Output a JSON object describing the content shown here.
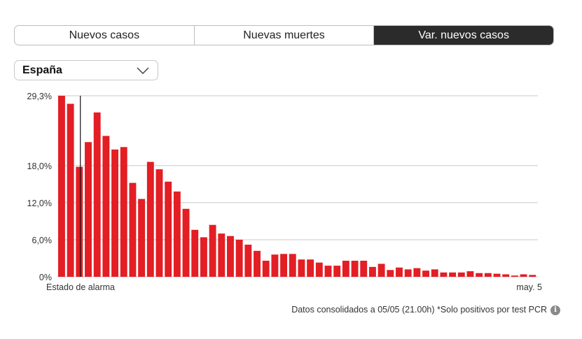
{
  "tabs": [
    {
      "label": "Nuevos casos",
      "active": false
    },
    {
      "label": "Nuevas muertes",
      "active": false
    },
    {
      "label": "Var. nuevos casos",
      "active": true
    }
  ],
  "region_select": {
    "value": "España",
    "icon": "chevron-down-icon"
  },
  "footnote": "Datos consolidados a 05/05 (21.00h) *Solo positivos por test PCR",
  "info_icon": "info-icon",
  "colors": {
    "bar": "#e31e24",
    "grid": "#c8c8c8",
    "marker": "#111111"
  },
  "chart_data": {
    "type": "bar",
    "y_tick_labels": [
      "0%",
      "6,0%",
      "12,0%",
      "18,0%",
      "29,3%"
    ],
    "y_ticks": [
      0,
      6,
      12,
      18,
      29.3
    ],
    "ylim": [
      0,
      29.3
    ],
    "x_labels": {
      "start": "Estado de alarma",
      "end": "may. 5"
    },
    "marker_label": "Estado de alarma",
    "marker_index": 2.5,
    "values": [
      29.3,
      28.0,
      17.8,
      21.8,
      26.6,
      22.8,
      20.6,
      21.0,
      15.2,
      12.6,
      18.6,
      17.4,
      15.4,
      13.8,
      11.0,
      7.6,
      6.4,
      8.4,
      7.0,
      6.6,
      6.0,
      5.2,
      4.2,
      2.6,
      3.6,
      3.7,
      3.7,
      2.8,
      2.8,
      2.3,
      1.8,
      1.8,
      2.6,
      2.6,
      2.6,
      1.6,
      2.1,
      1.1,
      1.5,
      1.2,
      1.4,
      1.0,
      1.2,
      0.7,
      0.7,
      0.7,
      0.9,
      0.6,
      0.6,
      0.5,
      0.4,
      0.2,
      0.4,
      0.3
    ]
  }
}
